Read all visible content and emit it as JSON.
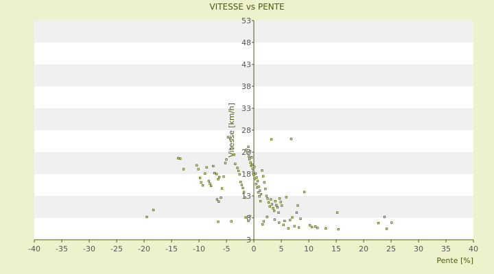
{
  "chart_data": {
    "type": "scatter",
    "title": "VITESSE vs PENTE",
    "xlabel": "Pente [%]",
    "ylabel": "Vitesse [km/h]",
    "xlim": [
      -40,
      40
    ],
    "ylim": [
      3,
      53
    ],
    "x_ticks": [
      -40,
      -35,
      -30,
      -25,
      -20,
      -15,
      -10,
      -5,
      0,
      5,
      10,
      15,
      20,
      25,
      30,
      35,
      40
    ],
    "y_ticks": [
      3,
      8,
      13,
      18,
      23,
      28,
      33,
      38,
      43,
      48,
      53
    ],
    "grid": "horizontal alternating bands",
    "legend": "none",
    "colors": {
      "marker_edge": "#5a6a10",
      "axis": "#4a5a10",
      "band_light": "#ffffff",
      "band_dark": "#f0f0f0",
      "background": "#eef2cc"
    },
    "series": [
      {
        "points": [
          [
            -19.5,
            8.2
          ],
          [
            -18.3,
            9.8
          ],
          [
            -13.8,
            21.6
          ],
          [
            -13.4,
            21.5
          ],
          [
            -12.8,
            19.1
          ],
          [
            -10.4,
            20.0
          ],
          [
            -10.1,
            19.1
          ],
          [
            -9.8,
            17.1
          ],
          [
            -9.3,
            15.4
          ],
          [
            -9.6,
            16.1
          ],
          [
            -8.9,
            18.1
          ],
          [
            -8.6,
            19.5
          ],
          [
            -8.2,
            16.4
          ],
          [
            -7.8,
            15.3
          ],
          [
            -8.0,
            15.8
          ],
          [
            -7.4,
            19.8
          ],
          [
            -7.2,
            18.2
          ],
          [
            -6.8,
            18.0
          ],
          [
            -6.5,
            16.8
          ],
          [
            -6.3,
            17.3
          ],
          [
            -6.7,
            12.2
          ],
          [
            -6.4,
            11.7
          ],
          [
            -6.0,
            12.6
          ],
          [
            -5.8,
            14.7
          ],
          [
            -5.5,
            17.4
          ],
          [
            -5.2,
            20.5
          ],
          [
            -5.0,
            21.3
          ],
          [
            -4.7,
            26.4
          ],
          [
            -4.3,
            26.0
          ],
          [
            -4.0,
            23.8
          ],
          [
            -3.6,
            22.4
          ],
          [
            -3.4,
            20.3
          ],
          [
            -3.0,
            19.4
          ],
          [
            -2.8,
            18.7
          ],
          [
            -2.6,
            17.9
          ],
          [
            -2.4,
            16.2
          ],
          [
            -2.2,
            15.5
          ],
          [
            -2.0,
            14.8
          ],
          [
            -1.8,
            13.9
          ],
          [
            -1.6,
            12.6
          ],
          [
            -1.4,
            23.5
          ],
          [
            -1.2,
            22.9
          ],
          [
            -1.0,
            24.2
          ],
          [
            -0.9,
            22.0
          ],
          [
            -0.8,
            21.4
          ],
          [
            -0.7,
            23.2
          ],
          [
            -0.6,
            20.6
          ],
          [
            -0.5,
            19.9
          ],
          [
            -0.4,
            21.8
          ],
          [
            -0.3,
            20.1
          ],
          [
            -0.2,
            19.2
          ],
          [
            -0.1,
            18.5
          ],
          [
            0.0,
            17.8
          ],
          [
            0.1,
            19.6
          ],
          [
            0.2,
            16.9
          ],
          [
            0.3,
            18.1
          ],
          [
            0.4,
            15.7
          ],
          [
            0.5,
            17.2
          ],
          [
            0.6,
            14.9
          ],
          [
            0.7,
            16.4
          ],
          [
            0.8,
            13.8
          ],
          [
            0.9,
            15.1
          ],
          [
            1.0,
            12.9
          ],
          [
            1.1,
            14.2
          ],
          [
            1.2,
            11.8
          ],
          [
            1.3,
            13.4
          ],
          [
            1.5,
            18.8
          ],
          [
            1.7,
            17.5
          ],
          [
            1.9,
            16.1
          ],
          [
            2.1,
            14.6
          ],
          [
            2.3,
            13.0
          ],
          [
            2.5,
            12.4
          ],
          [
            2.7,
            11.5
          ],
          [
            2.9,
            10.6
          ],
          [
            3.1,
            12.2
          ],
          [
            3.3,
            11.1
          ],
          [
            3.5,
            10.2
          ],
          [
            3.7,
            9.6
          ],
          [
            3.9,
            11.8
          ],
          [
            4.1,
            10.9
          ],
          [
            4.3,
            10.4
          ],
          [
            4.5,
            9.2
          ],
          [
            4.7,
            12.4
          ],
          [
            4.9,
            11.6
          ],
          [
            5.1,
            10.8
          ],
          [
            5.4,
            6.4
          ],
          [
            5.6,
            7.3
          ],
          [
            5.9,
            12.7
          ],
          [
            6.3,
            5.6
          ],
          [
            6.6,
            7.5
          ],
          [
            7.0,
            8.1
          ],
          [
            7.4,
            6.1
          ],
          [
            7.8,
            9.2
          ],
          [
            8.2,
            5.8
          ],
          [
            8.5,
            7.8
          ],
          [
            3.2,
            25.9
          ],
          [
            6.8,
            26.0
          ],
          [
            8.0,
            10.8
          ],
          [
            9.2,
            13.9
          ],
          [
            10.2,
            6.3
          ],
          [
            10.6,
            5.9
          ],
          [
            11.2,
            6.0
          ],
          [
            11.6,
            5.7
          ],
          [
            13.1,
            5.6
          ],
          [
            15.2,
            9.2
          ],
          [
            15.4,
            5.4
          ],
          [
            22.7,
            6.8
          ],
          [
            23.8,
            8.2
          ],
          [
            24.2,
            5.5
          ],
          [
            25.1,
            6.9
          ],
          [
            -1.5,
            8.1
          ],
          [
            -1.0,
            7.3
          ],
          [
            -0.7,
            8.4
          ],
          [
            1.6,
            6.5
          ],
          [
            1.8,
            7.2
          ],
          [
            -4.1,
            7.2
          ],
          [
            -6.5,
            7.1
          ],
          [
            2.4,
            8.2
          ],
          [
            3.8,
            7.6
          ],
          [
            4.6,
            6.9
          ]
        ]
      }
    ]
  }
}
